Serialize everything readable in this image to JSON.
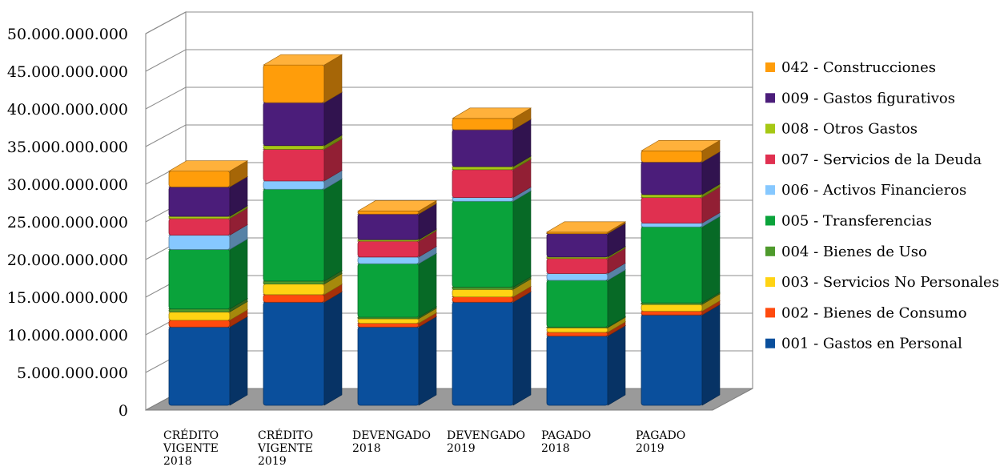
{
  "chart_data": {
    "type": "bar",
    "stacked": true,
    "three_d": true,
    "categories": [
      [
        "CRÉDITO",
        "VIGENTE",
        "2018"
      ],
      [
        "CRÉDITO",
        "VIGENTE",
        "2019"
      ],
      [
        "DEVENGADO",
        "2018"
      ],
      [
        "DEVENGADO",
        "2019"
      ],
      [
        "PAGADO",
        "2018"
      ],
      [
        "PAGADO",
        "2019"
      ]
    ],
    "ylim": [
      0,
      50000000000
    ],
    "yticks": [
      0,
      5000000000,
      10000000000,
      15000000000,
      20000000000,
      25000000000,
      30000000000,
      35000000000,
      40000000000,
      45000000000,
      50000000000
    ],
    "ytick_labels": [
      "0",
      "5.000.000.000",
      "10.000.000.000",
      "15.000.000.000",
      "20.000.000.000",
      "25.000.000.000",
      "30.000.000.000",
      "35.000.000.000",
      "40.000.000.000",
      "45.000.000.000",
      "50.000.000.000"
    ],
    "grid": true,
    "legend_position": "right",
    "series": [
      {
        "name": "001 - Gastos en Personal",
        "color": "#0a4f9c",
        "values": [
          10400000000,
          13700000000,
          10400000000,
          13700000000,
          9200000000,
          12000000000
        ]
      },
      {
        "name": "002 - Bienes de Consumo",
        "color": "#ff4a0e",
        "values": [
          900000000,
          1000000000,
          500000000,
          700000000,
          500000000,
          500000000
        ]
      },
      {
        "name": "003 - Servicios No Personales",
        "color": "#ffd313",
        "values": [
          1100000000,
          1400000000,
          600000000,
          1000000000,
          600000000,
          900000000
        ]
      },
      {
        "name": "004 - Bienes de Uso",
        "color": "#4e9a2c",
        "values": [
          400000000,
          400000000,
          200000000,
          300000000,
          100000000,
          200000000
        ]
      },
      {
        "name": "005 - Transferencias",
        "color": "#0aa33b",
        "values": [
          7900000000,
          12200000000,
          7100000000,
          11400000000,
          6200000000,
          10100000000
        ]
      },
      {
        "name": "006 - Activos Financieros",
        "color": "#86c8ff",
        "values": [
          1900000000,
          1100000000,
          900000000,
          500000000,
          900000000,
          500000000
        ]
      },
      {
        "name": "007 - Servicios de la Deuda",
        "color": "#e03050",
        "values": [
          2200000000,
          4200000000,
          2100000000,
          3700000000,
          2000000000,
          3400000000
        ]
      },
      {
        "name": "008 - Otros Gastos",
        "color": "#a6c814",
        "values": [
          300000000,
          500000000,
          200000000,
          400000000,
          200000000,
          400000000
        ]
      },
      {
        "name": "009 - Gastos figurativos",
        "color": "#4b1d7a",
        "values": [
          3900000000,
          5700000000,
          3400000000,
          4900000000,
          3100000000,
          4300000000
        ]
      },
      {
        "name": "042 - Construcciones",
        "color": "#ff9d0a",
        "values": [
          2100000000,
          5000000000,
          400000000,
          1500000000,
          200000000,
          1500000000
        ]
      }
    ]
  }
}
